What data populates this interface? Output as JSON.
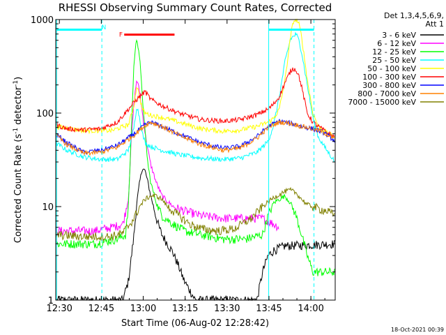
{
  "chart_data": {
    "type": "line",
    "title": "RHESSI Observing Summary Count Rates, Corrected",
    "xlabel": "Start Time (06-Aug-02 12:28:42)",
    "ylabel": "Corrected Count Rate (s⁻¹ detector⁻¹)",
    "ylabel_parts": {
      "main": "Corrected Count Rate (s",
      "exp1": "-1",
      "mid": " detector",
      "exp2": "-1",
      "end": ")"
    },
    "x_unit": "minutes after 12:28:42",
    "xlim": [
      0,
      100
    ],
    "y_scale": "log",
    "ylim": [
      1,
      1000
    ],
    "xticks": [
      {
        "v": 1.3,
        "label": "12:30"
      },
      {
        "v": 16.3,
        "label": "12:45"
      },
      {
        "v": 31.3,
        "label": "13:00"
      },
      {
        "v": 46.3,
        "label": "13:15"
      },
      {
        "v": 61.3,
        "label": "13:30"
      },
      {
        "v": 76.3,
        "label": "13:45"
      },
      {
        "v": 91.3,
        "label": "14:00"
      }
    ],
    "yticks": [
      {
        "v": 1,
        "label": "1"
      },
      {
        "v": 10,
        "label": "10"
      },
      {
        "v": 100,
        "label": "100"
      },
      {
        "v": 1000,
        "label": "1000"
      }
    ],
    "legend_header": [
      "Det 1,3,4,5,6,9,",
      "Att 1"
    ],
    "legend_position": "top-right outside",
    "series": [
      {
        "name": "3 - 6 keV",
        "color": "#000000",
        "x": [
          0,
          24,
          26,
          27,
          28,
          29,
          30,
          31,
          32,
          33,
          34,
          35,
          36,
          37,
          38,
          40,
          42,
          44,
          46,
          50,
          56,
          64,
          72,
          74,
          76,
          78,
          80,
          82,
          100
        ],
        "y": [
          1,
          1,
          1.6,
          2.8,
          5,
          11,
          18,
          26,
          24,
          18,
          13,
          10,
          7.5,
          6,
          5,
          4,
          3.2,
          2.3,
          1.6,
          1,
          1,
          1,
          1,
          2,
          3,
          3.4,
          3.6,
          3.8,
          4
        ]
      },
      {
        "name": "6 - 12 keV",
        "color": "#ff00ff",
        "x": [
          0,
          14,
          20,
          24,
          26,
          27,
          28,
          29,
          30,
          31,
          32,
          33,
          34,
          36,
          38,
          42,
          46,
          52,
          60,
          68,
          74,
          78,
          80,
          81,
          82,
          100
        ],
        "y": [
          5.5,
          5.5,
          6,
          6.5,
          12,
          50,
          130,
          230,
          170,
          100,
          60,
          40,
          28,
          18,
          13,
          10,
          9,
          8,
          7.5,
          7.5,
          7.5,
          6.5,
          6,
          null,
          null,
          null
        ]
      },
      {
        "name": "12 - 25 keV",
        "color": "#00ff00",
        "x": [
          0,
          14,
          22,
          25,
          26,
          27,
          28,
          29,
          30,
          31,
          32,
          33,
          34,
          36,
          38,
          42,
          46,
          52,
          60,
          68,
          74,
          76,
          78,
          80,
          82,
          84,
          86,
          88,
          90,
          92,
          100
        ],
        "y": [
          4,
          4,
          4.5,
          5,
          10,
          60,
          350,
          650,
          400,
          150,
          60,
          28,
          18,
          11,
          8,
          6.5,
          5.5,
          5,
          4.5,
          4.5,
          5,
          8,
          11,
          12,
          13,
          11,
          8,
          5,
          3,
          2,
          2
        ]
      },
      {
        "name": "25 - 50 keV",
        "color": "#00ffff",
        "x": [
          0,
          4,
          10,
          16,
          22,
          26,
          28,
          29,
          30,
          31,
          32,
          34,
          38,
          44,
          52,
          60,
          66,
          72,
          76,
          78,
          80,
          82,
          84,
          86,
          87,
          88,
          90,
          92,
          94,
          97,
          100
        ],
        "y": [
          48,
          40,
          34,
          32,
          32,
          40,
          70,
          120,
          90,
          60,
          48,
          44,
          40,
          36,
          33,
          32,
          33,
          38,
          50,
          75,
          150,
          350,
          620,
          700,
          600,
          450,
          200,
          90,
          55,
          40,
          30
        ]
      },
      {
        "name": "50 - 100 keV",
        "color": "#ffff00",
        "x": [
          0,
          10,
          20,
          26,
          28,
          29,
          30,
          31,
          32,
          34,
          38,
          44,
          52,
          60,
          66,
          72,
          76,
          78,
          80,
          82,
          84,
          85,
          86,
          87,
          88,
          90,
          92,
          94,
          97,
          100
        ],
        "y": [
          72,
          65,
          65,
          75,
          120,
          200,
          150,
          110,
          100,
          95,
          90,
          80,
          68,
          64,
          66,
          72,
          80,
          88,
          110,
          220,
          650,
          950,
          1000,
          900,
          650,
          230,
          100,
          72,
          62,
          55
        ]
      },
      {
        "name": "100 - 300 keV",
        "color": "#ff0000",
        "x": [
          0,
          4,
          10,
          16,
          22,
          26,
          28,
          30,
          32,
          34,
          38,
          44,
          52,
          60,
          66,
          72,
          76,
          78,
          80,
          82,
          84,
          85,
          86,
          87,
          88,
          90,
          92,
          94,
          97,
          100
        ],
        "y": [
          75,
          68,
          66,
          68,
          80,
          110,
          130,
          150,
          170,
          140,
          120,
          100,
          85,
          82,
          85,
          96,
          110,
          125,
          150,
          210,
          280,
          300,
          290,
          250,
          190,
          100,
          80,
          72,
          62,
          55
        ]
      },
      {
        "name": "300 - 800 keV",
        "color": "#0000ff",
        "x": [
          0,
          4,
          10,
          16,
          22,
          28,
          32,
          34,
          38,
          44,
          52,
          60,
          66,
          72,
          76,
          80,
          84,
          88,
          92,
          96,
          100
        ],
        "y": [
          60,
          48,
          38,
          40,
          45,
          60,
          75,
          80,
          72,
          60,
          48,
          42,
          44,
          56,
          72,
          82,
          78,
          72,
          68,
          62,
          50
        ]
      },
      {
        "name": "800 - 7000 keV",
        "color": "#ff8000",
        "x": [
          0,
          4,
          10,
          16,
          22,
          28,
          32,
          34,
          38,
          44,
          52,
          60,
          66,
          72,
          76,
          80,
          84,
          88,
          92,
          96,
          100
        ],
        "y": [
          58,
          46,
          37,
          38,
          43,
          58,
          74,
          80,
          72,
          58,
          46,
          40,
          42,
          54,
          70,
          80,
          78,
          72,
          68,
          62,
          52
        ]
      },
      {
        "name": "7000 - 15000 keV",
        "color": "#808000",
        "x": [
          0,
          10,
          20,
          24,
          28,
          30,
          32,
          34,
          36,
          38,
          40,
          44,
          48,
          52,
          58,
          64,
          70,
          74,
          78,
          82,
          84,
          86,
          88,
          90,
          92,
          94,
          97,
          100
        ],
        "y": [
          5,
          4.8,
          4.8,
          5.2,
          7.5,
          10,
          12,
          13,
          13,
          12,
          10,
          8,
          6.5,
          5.8,
          5.5,
          5.8,
          7.5,
          10,
          12.5,
          14.5,
          15,
          14,
          12,
          10.5,
          10,
          9.5,
          9,
          8
        ]
      }
    ],
    "annotations": [
      {
        "type": "vline",
        "color": "#00ffff",
        "x": 0.3,
        "style": "solid"
      },
      {
        "type": "vline",
        "color": "#00ffff",
        "x": 16.5,
        "style": "dashed"
      },
      {
        "type": "vline",
        "color": "#00ffff",
        "x": 76.2,
        "style": "solid"
      },
      {
        "type": "vline",
        "color": "#00ffff",
        "x": 92.4,
        "style": "dashed"
      },
      {
        "type": "hbar",
        "color": "#00ffff",
        "x0": 0.3,
        "x1": 16.5,
        "y": 780
      },
      {
        "type": "hbar",
        "color": "#00ffff",
        "x0": 76.2,
        "x1": 92.4,
        "y": 780
      },
      {
        "type": "hbar",
        "color": "#ff0000",
        "x0": 24.5,
        "x1": 42.5,
        "y": 690
      },
      {
        "type": "label",
        "text": "N",
        "color": "#00ffff",
        "x": 17.2,
        "y": 830
      },
      {
        "type": "label",
        "text": "F",
        "color": "#ff0000",
        "x": 23.3,
        "y": 690
      }
    ],
    "footer_timestamp": "18-Oct-2021 00:39"
  }
}
